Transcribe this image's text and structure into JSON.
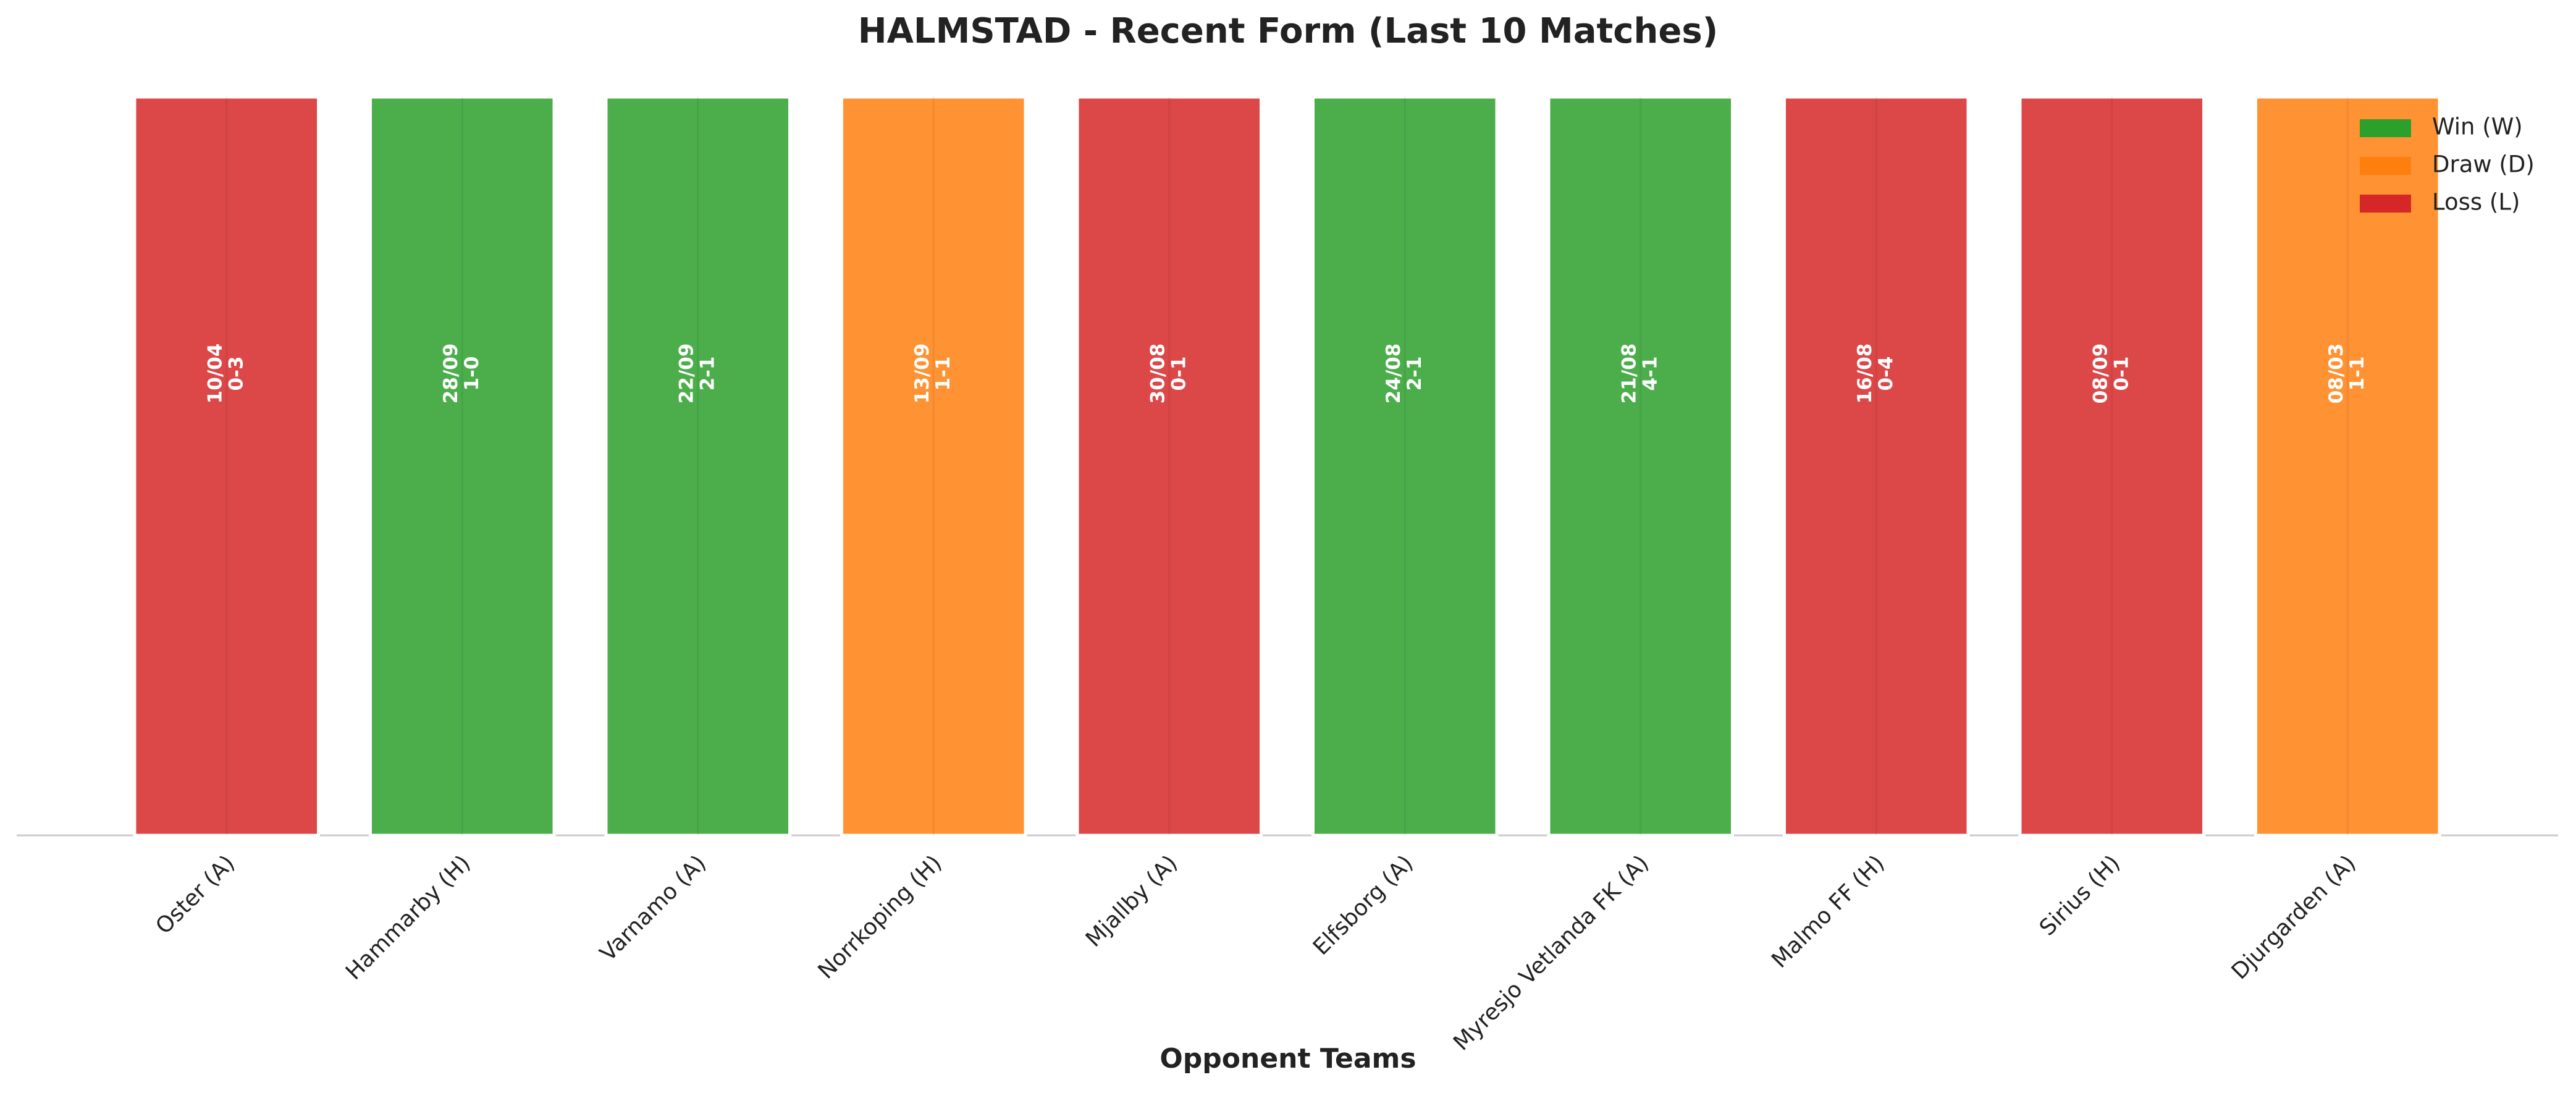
{
  "chart_data": {
    "type": "bar",
    "title": "HALMSTAD - Recent Form (Last 10 Matches)",
    "xlabel": "Opponent Teams",
    "categories": [
      "Oster (A)",
      "Hammarby (H)",
      "Varnamo (A)",
      "Norrkoping (H)",
      "Mjallby (A)",
      "Elfsborg (A)",
      "Myresjo Vetlanda FK (A)",
      "Malmo FF (H)",
      "Sirius (H)",
      "Djurgarden (A)"
    ],
    "values": [
      1,
      1,
      1,
      1,
      1,
      1,
      1,
      1,
      1,
      1
    ],
    "dates": [
      "10/04",
      "28/09",
      "22/09",
      "13/09",
      "30/08",
      "24/08",
      "21/08",
      "16/08",
      "08/09",
      "08/03"
    ],
    "scores": [
      "0-3",
      "1-0",
      "2-1",
      "1-1",
      "0-1",
      "2-1",
      "4-1",
      "0-4",
      "0-1",
      "1-1"
    ],
    "colors": [
      "#d62728",
      "#2ca02c",
      "#2ca02c",
      "#ff7f0e",
      "#d62728",
      "#2ca02c",
      "#2ca02c",
      "#d62728",
      "#d62728",
      "#ff7f0e"
    ],
    "ylim": [
      0,
      1
    ],
    "legend_position": "upper right",
    "legend": [
      {
        "name": "Win (W)",
        "color": "#2ca02c"
      },
      {
        "name": "Draw (D)",
        "color": "#ff7f0e"
      },
      {
        "name": "Loss (L)",
        "color": "#d62728"
      }
    ]
  }
}
